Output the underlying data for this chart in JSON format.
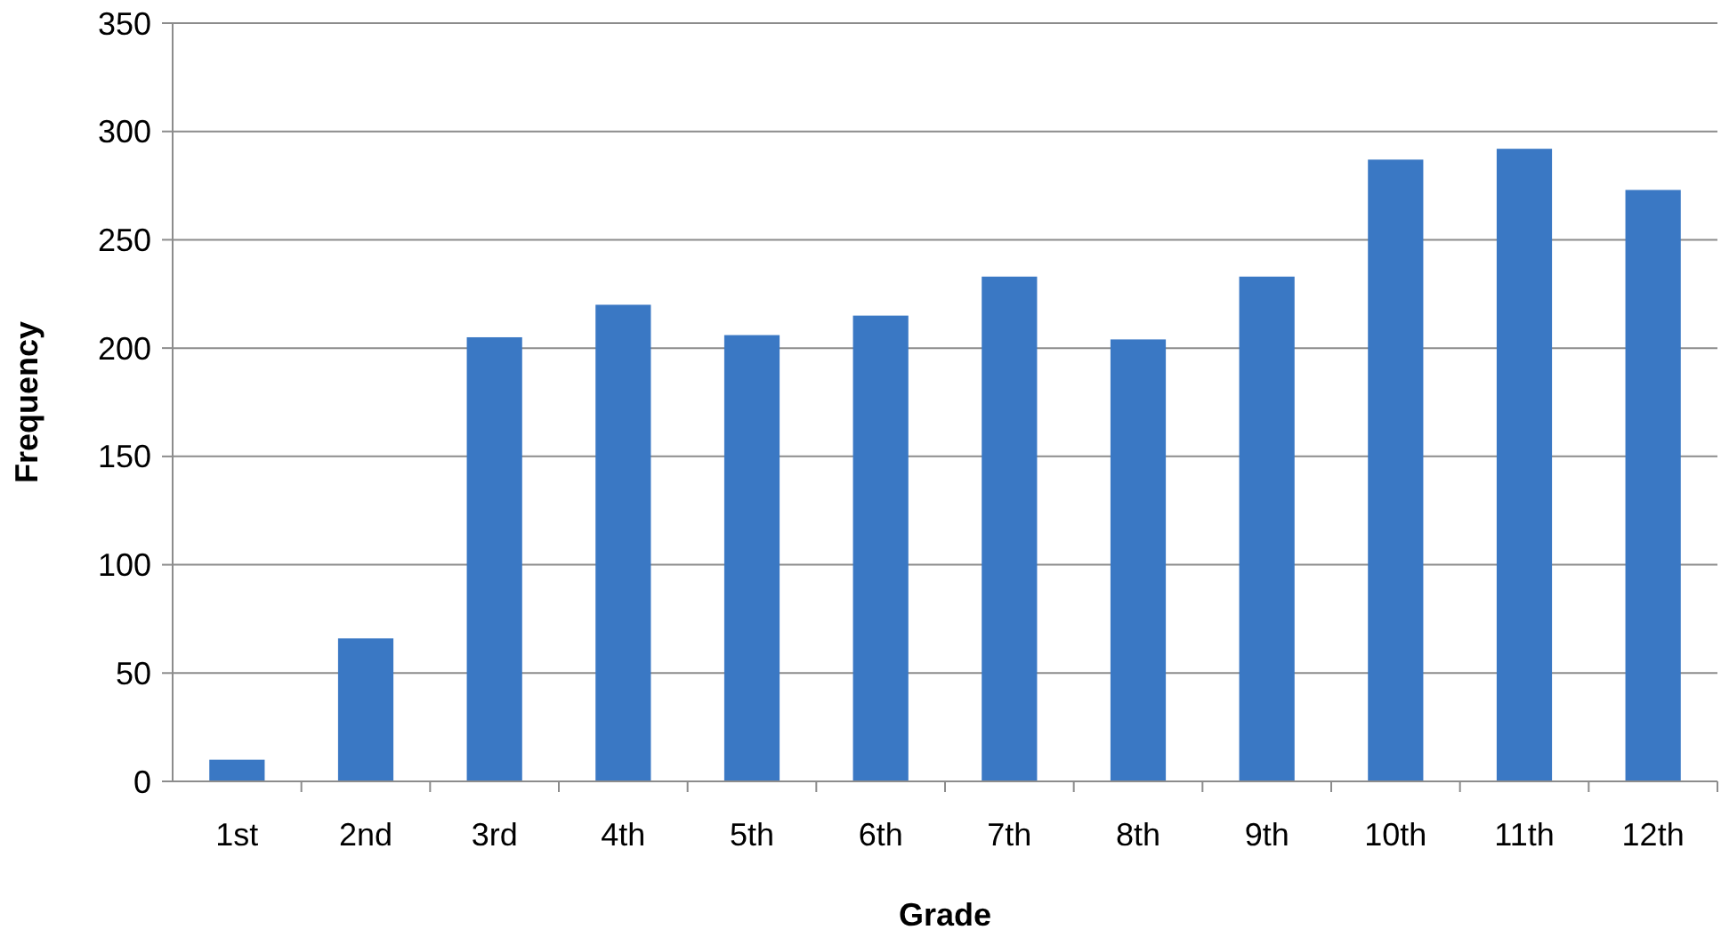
{
  "chart_data": {
    "type": "bar",
    "xlabel": "Grade",
    "ylabel": "Frequency",
    "categories": [
      "1st",
      "2nd",
      "3rd",
      "4th",
      "5th",
      "6th",
      "7th",
      "8th",
      "9th",
      "10th",
      "11th",
      "12th"
    ],
    "values": [
      10,
      66,
      205,
      220,
      206,
      215,
      233,
      204,
      233,
      287,
      292,
      273
    ],
    "color": "#3a78c4",
    "ylim": [
      0,
      350
    ],
    "yticks": [
      0,
      50,
      100,
      150,
      200,
      250,
      300,
      350
    ],
    "grid": "y"
  }
}
